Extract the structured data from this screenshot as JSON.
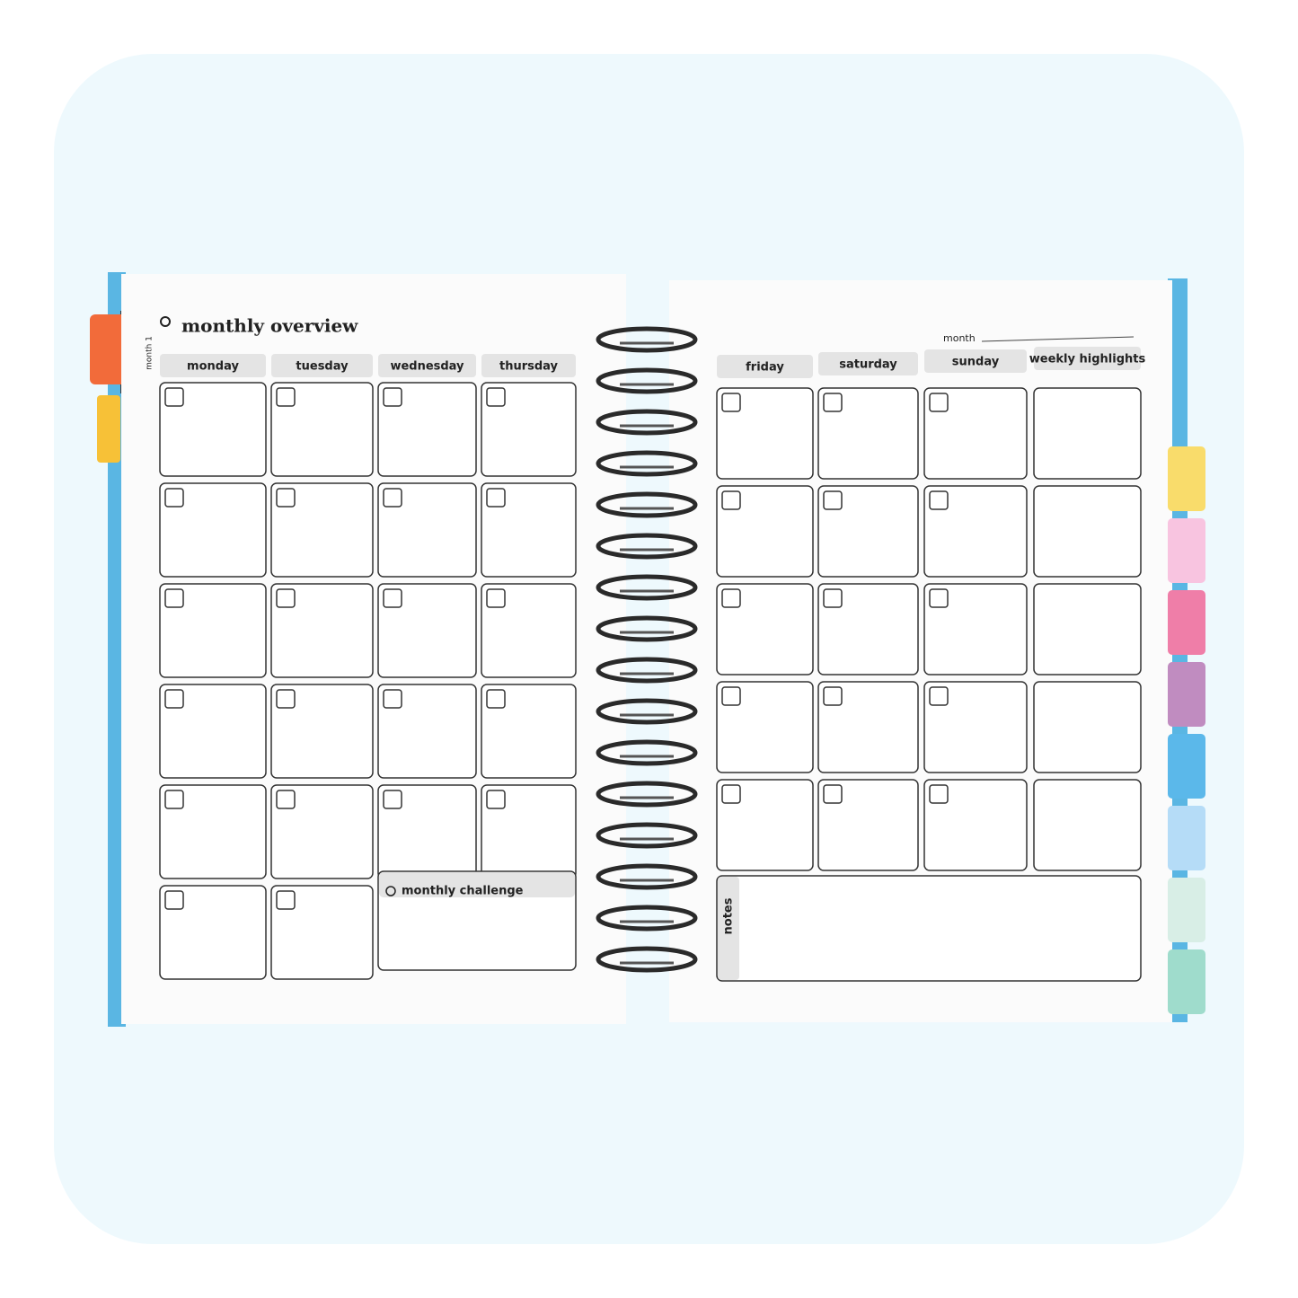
{
  "left_page": {
    "title": "monthly overview",
    "tab_label": "month 1",
    "days": [
      "monday",
      "tuesday",
      "wednesday",
      "thursday"
    ],
    "challenge": "monthly challenge"
  },
  "right_page": {
    "month_label": "month",
    "days": [
      "friday",
      "saturday",
      "sunday",
      "weekly highlights"
    ],
    "notes": "notes"
  }
}
